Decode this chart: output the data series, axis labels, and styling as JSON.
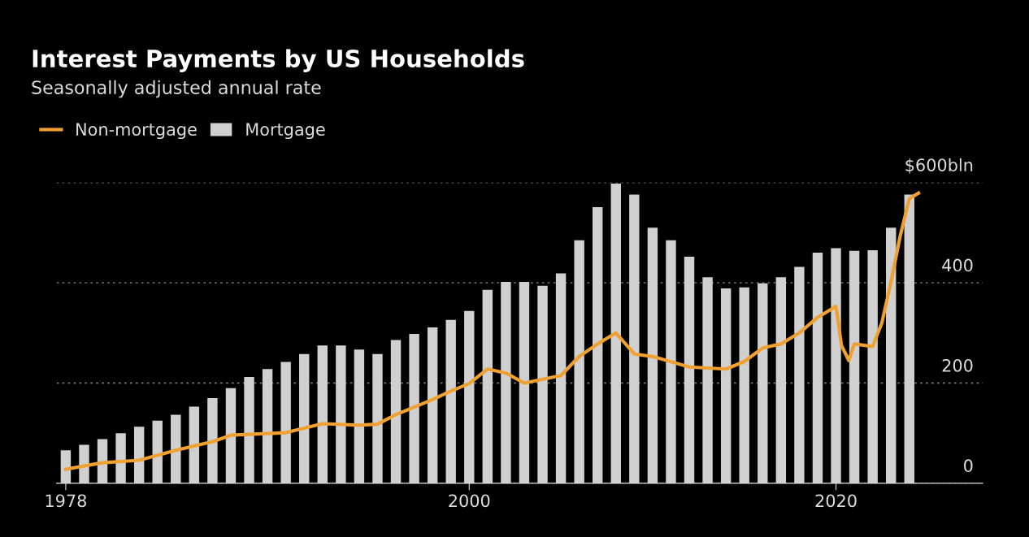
{
  "chart_data": {
    "type": "bar",
    "title": "Interest Payments by US Households",
    "subtitle": "Seasonally adjusted annual rate",
    "x": [
      1978,
      1979,
      1980,
      1981,
      1982,
      1983,
      1984,
      1985,
      1986,
      1987,
      1988,
      1989,
      1990,
      1991,
      1992,
      1993,
      1994,
      1995,
      1996,
      1997,
      1998,
      1999,
      2000,
      2001,
      2002,
      2003,
      2004,
      2005,
      2006,
      2007,
      2008,
      2009,
      2010,
      2011,
      2012,
      2013,
      2014,
      2015,
      2016,
      2017,
      2018,
      2019,
      2020,
      2021,
      2022,
      2023,
      2024
    ],
    "series": [
      {
        "name": "Non-mortgage",
        "type": "line",
        "color": "#f0a030",
        "x": [
          1978,
          1980,
          1982,
          1984,
          1986,
          1987,
          1990,
          1992,
          1994,
          1995,
          1996,
          1998,
          1999,
          2000,
          2001,
          2002,
          2003,
          2005,
          2006,
          2007,
          2008,
          2009,
          2010,
          2012,
          2014,
          2015,
          2016,
          2017,
          2018,
          2019,
          2020,
          2020.3,
          2020.7,
          2021,
          2022,
          2022.5,
          2023,
          2023.5,
          2024,
          2024.5
        ],
        "values": [
          28,
          41,
          46,
          66,
          83,
          96,
          101,
          119,
          116,
          118,
          137,
          167,
          184,
          199,
          228,
          220,
          200,
          215,
          253,
          278,
          300,
          258,
          253,
          232,
          228,
          243,
          270,
          278,
          300,
          331,
          353,
          275,
          245,
          278,
          273,
          320,
          402,
          493,
          568,
          579
        ]
      },
      {
        "name": "Mortgage",
        "color": "#d0d0d0",
        "values": [
          66,
          77,
          88,
          100,
          113,
          125,
          137,
          153,
          170,
          190,
          212,
          228,
          242,
          258,
          275,
          275,
          267,
          258,
          286,
          298,
          311,
          326,
          344,
          386,
          402,
          402,
          394,
          419,
          485,
          551,
          598,
          576,
          510,
          485,
          452,
          411,
          389,
          391,
          399,
          411,
          432,
          460,
          469,
          464,
          465,
          510,
          576
        ]
      }
    ],
    "ylim": [
      0,
      600
    ],
    "yticks": [
      0,
      200,
      400,
      {
        "value": 600,
        "label": "$600bln"
      }
    ],
    "xlim": [
      1977.5,
      2028
    ],
    "xticks": [
      1978,
      2000,
      2020
    ],
    "grid": "y",
    "legend": "top left"
  }
}
